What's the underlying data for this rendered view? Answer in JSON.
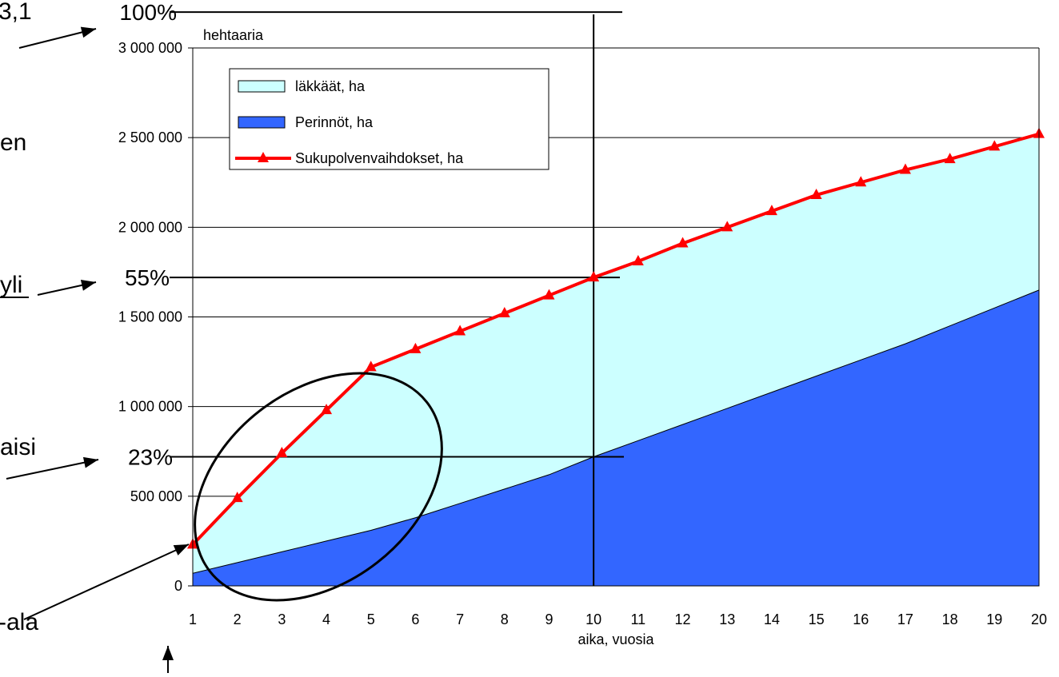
{
  "chart_data": {
    "type": "area",
    "x": [
      1,
      2,
      3,
      4,
      5,
      6,
      7,
      8,
      9,
      10,
      11,
      12,
      13,
      14,
      15,
      16,
      17,
      18,
      19,
      20
    ],
    "xlabel": "aika, vuosia",
    "ylabel": "hehtaaria",
    "ylim": [
      0,
      3000000
    ],
    "yticks": [
      "0",
      "500 000",
      "1 000 000",
      "1 500 000",
      "2 000 000",
      "2 500 000",
      "3 000 000"
    ],
    "ytick_values": [
      0,
      500000,
      1000000,
      1500000,
      2000000,
      2500000,
      3000000
    ],
    "grid": "horizontal",
    "legend_placement": "top-left",
    "series": [
      {
        "name": "läkkäät, ha",
        "kind": "area",
        "color": "#ccffff",
        "values": [
          230000,
          490000,
          740000,
          980000,
          1220000,
          1320000,
          1420000,
          1520000,
          1620000,
          1720000,
          1810000,
          1910000,
          2000000,
          2090000,
          2180000,
          2250000,
          2320000,
          2380000,
          2450000,
          2520000
        ]
      },
      {
        "name": "Perinnöt, ha",
        "kind": "area",
        "color": "#3366ff",
        "values": [
          70000,
          130000,
          190000,
          250000,
          310000,
          380000,
          460000,
          540000,
          620000,
          720000,
          810000,
          900000,
          990000,
          1080000,
          1170000,
          1260000,
          1350000,
          1450000,
          1550000,
          1650000
        ]
      },
      {
        "name": "Sukupolvenvaihdokset, ha",
        "kind": "line",
        "color": "#ff0000",
        "marker": "triangle",
        "values": [
          230000,
          490000,
          740000,
          980000,
          1220000,
          1320000,
          1420000,
          1520000,
          1620000,
          1720000,
          1810000,
          1910000,
          2000000,
          2090000,
          2180000,
          2250000,
          2320000,
          2380000,
          2450000,
          2520000
        ]
      }
    ],
    "annotations": [
      {
        "text": "100%",
        "y": 3200000
      },
      {
        "text": "55%",
        "y": 1720000
      },
      {
        "text": "23%",
        "y": 720000
      }
    ]
  },
  "side_text": {
    "top_fragment": "3,1",
    "en_fragment": "en",
    "yli_fragment": "yli",
    "aisi_fragment": "aisi",
    "ala_fragment": "-ala"
  }
}
